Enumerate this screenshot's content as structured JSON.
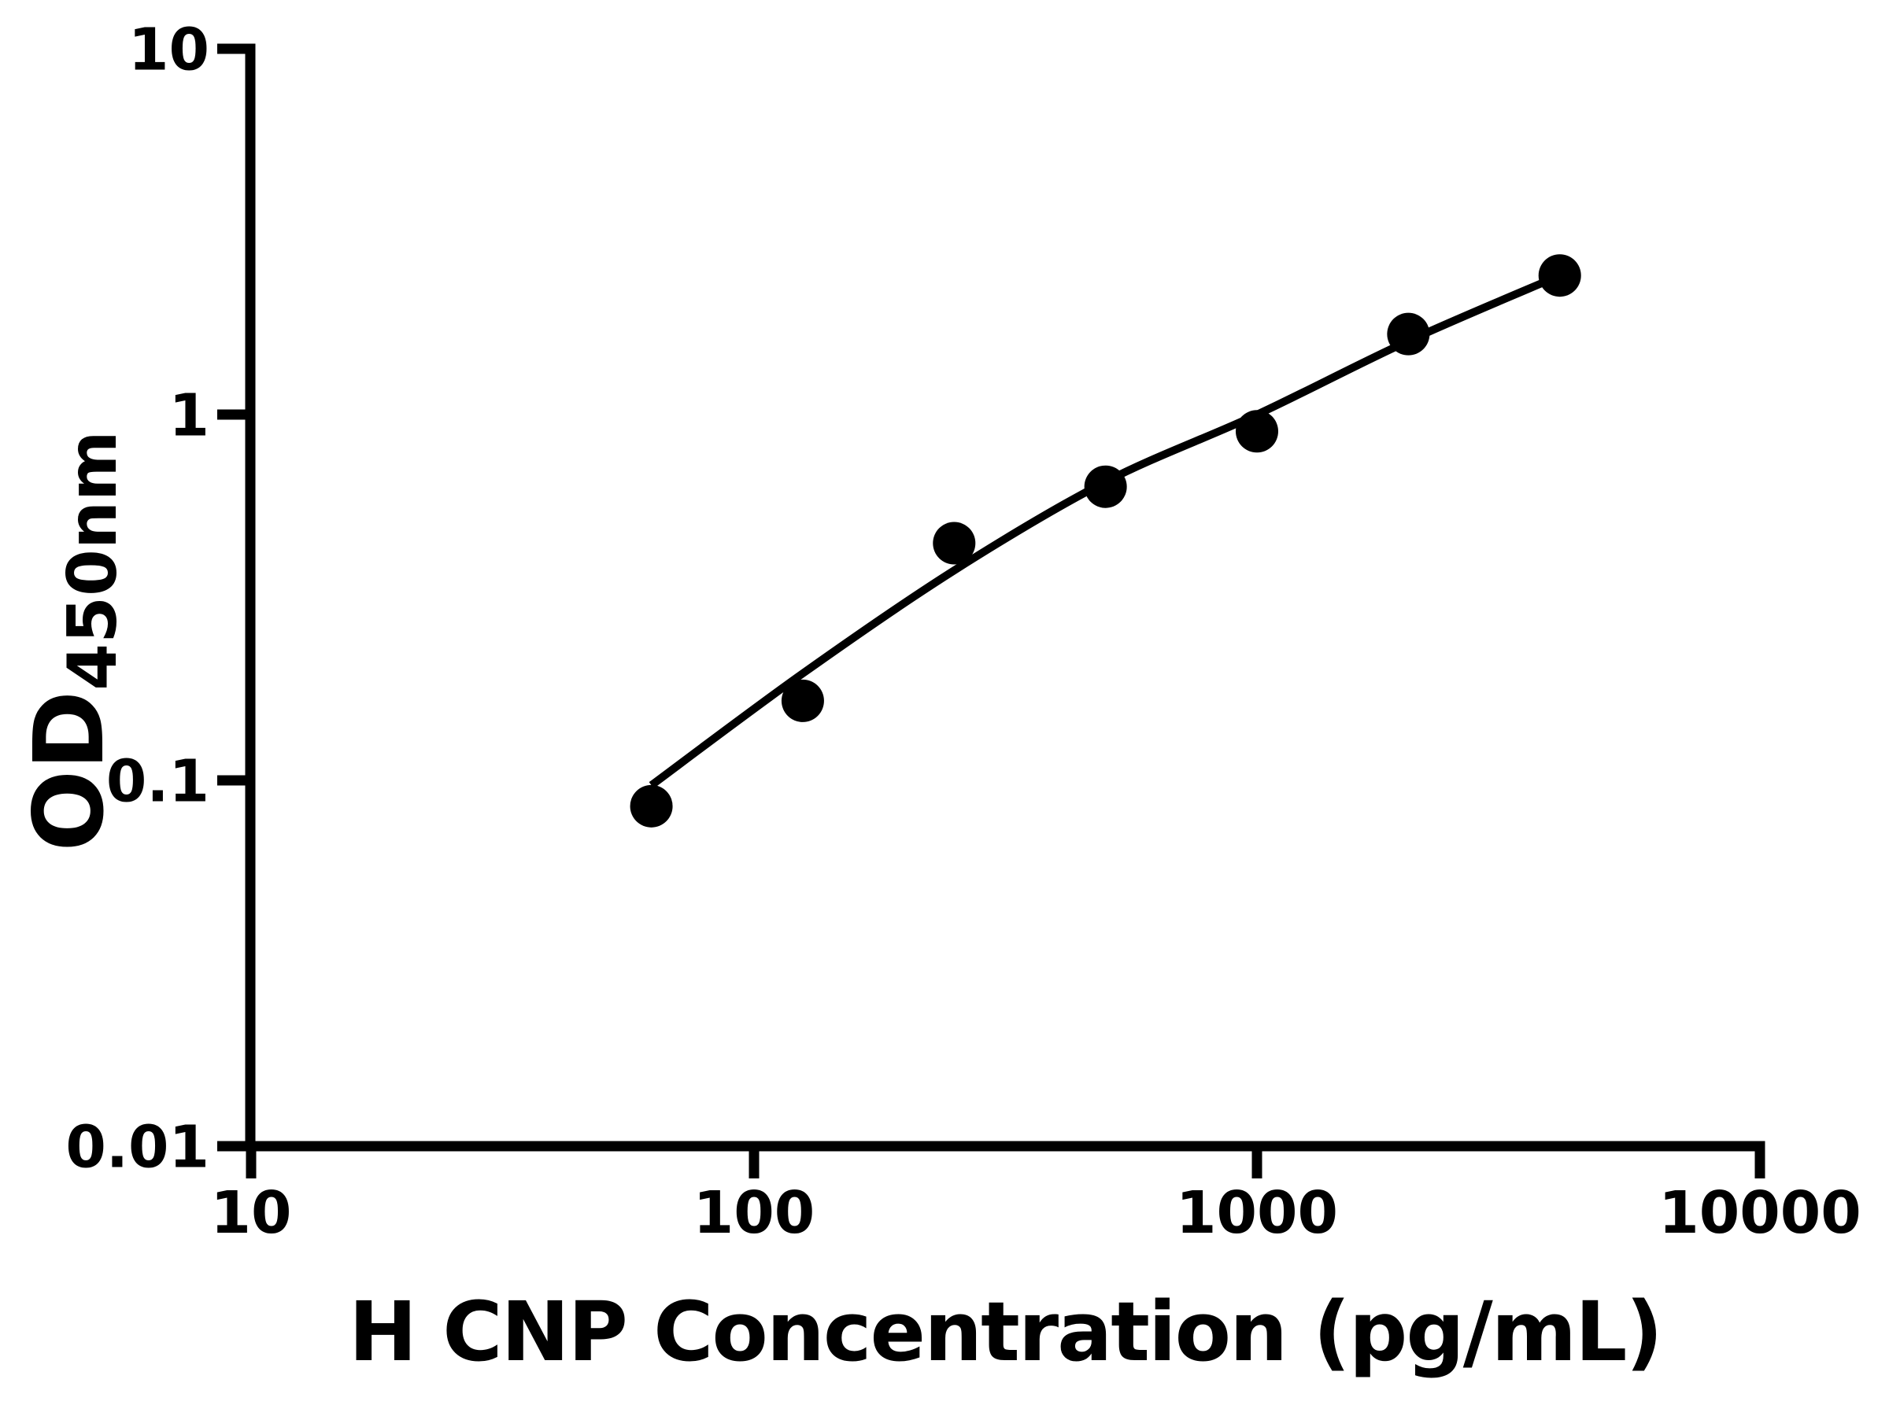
{
  "figure": {
    "background_color": "#ffffff",
    "ink_color": "#000000"
  },
  "chart_data": {
    "type": "scatter",
    "title": "",
    "xlabel": "H CNP Concentration (pg/mL)",
    "ylabel_main": "OD",
    "ylabel_sub": "450nm",
    "x_scale": "log",
    "y_scale": "log",
    "xlim": [
      10,
      10000
    ],
    "ylim": [
      0.01,
      10
    ],
    "grid": "off",
    "legend": "none",
    "x_ticks": [
      {
        "value": 10,
        "label": "10"
      },
      {
        "value": 100,
        "label": "100"
      },
      {
        "value": 1000,
        "label": "1000"
      },
      {
        "value": 10000,
        "label": "10000"
      }
    ],
    "y_ticks": [
      {
        "value": 10,
        "label": "10"
      },
      {
        "value": 1,
        "label": "1"
      },
      {
        "value": 0.1,
        "label": "0.1"
      },
      {
        "value": 0.01,
        "label": "0.01"
      }
    ],
    "series": [
      {
        "name": "standard-curve-points",
        "marker": "filled-circle",
        "color": "#000000",
        "points": [
          {
            "x": 62.5,
            "y": 0.085
          },
          {
            "x": 125,
            "y": 0.165
          },
          {
            "x": 250,
            "y": 0.445
          },
          {
            "x": 500,
            "y": 0.635
          },
          {
            "x": 1000,
            "y": 0.9
          },
          {
            "x": 2000,
            "y": 1.66
          },
          {
            "x": 4000,
            "y": 2.4
          }
        ]
      }
    ],
    "fit_curve": {
      "name": "fitted-standard-curve",
      "color": "#000000",
      "points": [
        {
          "x": 62.5,
          "y": 0.097
        },
        {
          "x": 125,
          "y": 0.196
        },
        {
          "x": 250,
          "y": 0.375
        },
        {
          "x": 500,
          "y": 0.655
        },
        {
          "x": 1000,
          "y": 1.0
        },
        {
          "x": 2000,
          "y": 1.59
        },
        {
          "x": 4000,
          "y": 2.4
        }
      ]
    }
  }
}
